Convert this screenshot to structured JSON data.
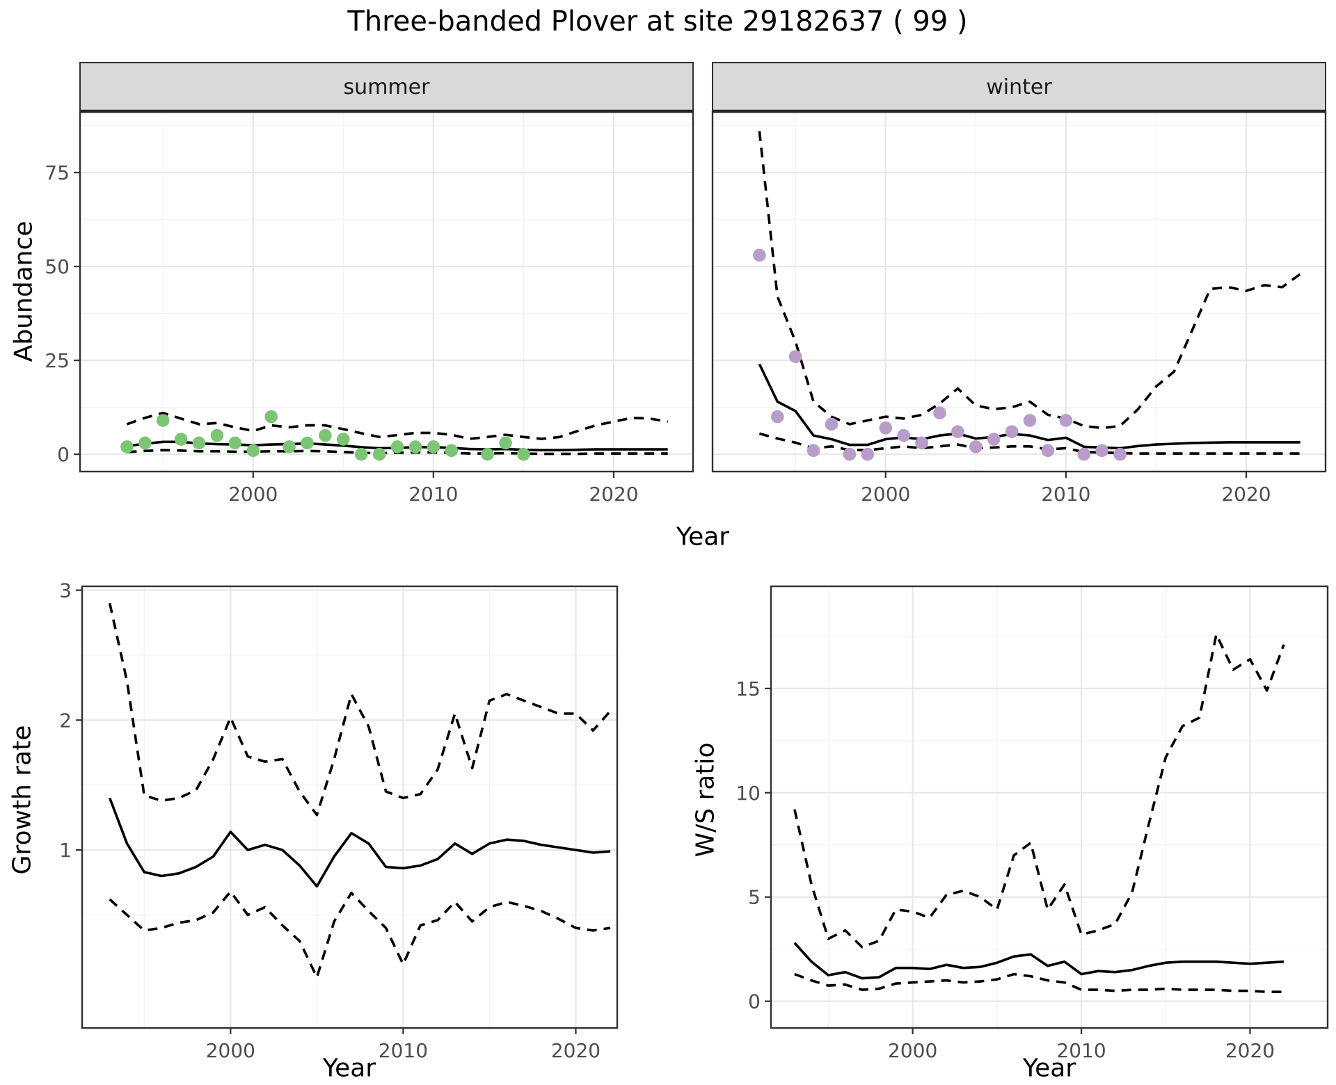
{
  "title": "Three-banded Plover at site 29182637 ( 99 )",
  "axis_labels": {
    "abundance": "Abundance",
    "year_top": "Year",
    "growth_rate": "Growth rate",
    "year_growth": "Year",
    "ws_ratio": "W/S ratio",
    "year_ws": "Year"
  },
  "facet_labels": [
    "summer",
    "winter"
  ],
  "colors": {
    "summer_point": "#7CC575",
    "winter_point": "#B99CC9",
    "fit_line": "#000000",
    "ci_line": "#000000",
    "grid_major": "#E7E7E7",
    "grid_minor": "#F3F3F3",
    "panel_border": "#303030",
    "strip_bg": "#D9D9D9",
    "strip_border": "#262626",
    "axis_text": "#4D4D4D",
    "title_text": "#000000"
  },
  "chart_data": [
    {
      "id": "abundance-summer",
      "type": "scatter",
      "facet_label": "summer",
      "xlabel": "Year",
      "ylabel": "Abundance",
      "xlim": [
        1990.4,
        2024.4
      ],
      "ylim": [
        -4.6,
        91.3
      ],
      "xticks": [
        2000,
        2010,
        2020
      ],
      "xticks_minor": [
        1995,
        2005,
        2015
      ],
      "yticks": [
        0,
        25,
        50,
        75
      ],
      "yticks_minor": [
        12.5,
        37.5,
        62.5,
        87.5
      ],
      "point_color": "#7CC575",
      "points": {
        "x": [
          1993,
          1994,
          1995,
          1996,
          1997,
          1998,
          1999,
          2000,
          2001,
          2002,
          2003,
          2004,
          2005,
          2006,
          2007,
          2008,
          2009,
          2010,
          2011,
          2013,
          2014,
          2015
        ],
        "y": [
          2,
          3,
          9,
          4,
          3,
          5,
          3,
          1,
          10,
          2,
          3,
          5,
          4,
          0,
          0,
          2,
          2,
          2,
          1,
          0,
          3,
          0
        ]
      },
      "series": [
        {
          "name": "model fit",
          "style": "solid",
          "x": [
            1993,
            1994,
            1995,
            1996,
            1997,
            1998,
            1999,
            2000,
            2001,
            2002,
            2003,
            2004,
            2005,
            2006,
            2007,
            2008,
            2009,
            2010,
            2011,
            2012,
            2013,
            2014,
            2015,
            2016,
            2017,
            2018,
            2019,
            2020,
            2021,
            2022,
            2023
          ],
          "y": [
            2.2,
            2.8,
            3.3,
            3.3,
            2.9,
            2.7,
            2.6,
            2.4,
            2.6,
            2.7,
            2.9,
            2.6,
            2.3,
            1.9,
            1.6,
            1.7,
            1.9,
            1.9,
            1.7,
            1.4,
            1.3,
            1.4,
            1.2,
            1.1,
            1.1,
            1.2,
            1.3,
            1.3,
            1.3,
            1.3,
            1.3
          ]
        },
        {
          "name": "CI upper",
          "style": "dashed",
          "x": [
            1993,
            1994,
            1995,
            1996,
            1997,
            1998,
            1999,
            2000,
            2001,
            2002,
            2003,
            2004,
            2005,
            2006,
            2007,
            2008,
            2009,
            2010,
            2011,
            2012,
            2013,
            2014,
            2015,
            2016,
            2017,
            2018,
            2019,
            2020,
            2021,
            2022,
            2023
          ],
          "y": [
            8.0,
            9.7,
            11.0,
            9.5,
            8.0,
            8.3,
            7.2,
            6.2,
            7.7,
            7.2,
            7.7,
            7.7,
            6.7,
            5.6,
            4.6,
            5.1,
            5.7,
            5.7,
            5.2,
            4.1,
            4.6,
            5.2,
            4.6,
            4.1,
            4.6,
            6.2,
            7.7,
            8.7,
            9.7,
            9.5,
            8.7
          ]
        },
        {
          "name": "CI lower",
          "style": "dashed",
          "x": [
            1993,
            1994,
            1995,
            1996,
            1997,
            1998,
            1999,
            2000,
            2001,
            2002,
            2003,
            2004,
            2005,
            2006,
            2007,
            2008,
            2009,
            2010,
            2011,
            2012,
            2013,
            2014,
            2015,
            2016,
            2017,
            2018,
            2019,
            2020,
            2021,
            2022,
            2023
          ],
          "y": [
            0.6,
            0.9,
            1.1,
            1.0,
            0.8,
            0.8,
            0.7,
            0.7,
            0.8,
            0.8,
            0.9,
            0.8,
            0.6,
            0.4,
            0.3,
            0.4,
            0.5,
            0.5,
            0.4,
            0.2,
            0.2,
            0.3,
            0.2,
            0.1,
            0.1,
            0.1,
            0.2,
            0.2,
            0.2,
            0.2,
            0.2
          ]
        }
      ]
    },
    {
      "id": "abundance-winter",
      "type": "scatter",
      "facet_label": "winter",
      "xlabel": "Year",
      "ylabel": "Abundance",
      "xlim": [
        1990.4,
        2024.4
      ],
      "ylim": [
        -4.6,
        91.3
      ],
      "xticks": [
        2000,
        2010,
        2020
      ],
      "xticks_minor": [
        1995,
        2005,
        2015
      ],
      "yticks": [
        0,
        25,
        50,
        75
      ],
      "yticks_minor": [
        12.5,
        37.5,
        62.5,
        87.5
      ],
      "point_color": "#B99CC9",
      "points": {
        "x": [
          1993,
          1994,
          1995,
          1996,
          1997,
          1998,
          1999,
          2000,
          2001,
          2002,
          2003,
          2004,
          2005,
          2006,
          2007,
          2008,
          2009,
          2010,
          2011,
          2012,
          2013
        ],
        "y": [
          53,
          10,
          26,
          1,
          8,
          0,
          0,
          7,
          5,
          3,
          11,
          6,
          2,
          4,
          6,
          9,
          1,
          9,
          0,
          1,
          0
        ]
      },
      "series": [
        {
          "name": "model fit",
          "style": "solid",
          "x": [
            1993,
            1994,
            1995,
            1996,
            1997,
            1998,
            1999,
            2000,
            2001,
            2002,
            2003,
            2004,
            2005,
            2006,
            2007,
            2008,
            2009,
            2010,
            2011,
            2012,
            2013,
            2014,
            2015,
            2016,
            2017,
            2018,
            2019,
            2020,
            2021,
            2022,
            2023
          ],
          "y": [
            24,
            14,
            11.5,
            5,
            4,
            2.5,
            2.5,
            4,
            4.5,
            4,
            5,
            5.5,
            4.2,
            4.6,
            5.4,
            5.0,
            3.8,
            4.4,
            2.0,
            1.8,
            1.6,
            2.2,
            2.6,
            2.8,
            3.0,
            3.1,
            3.2,
            3.2,
            3.2,
            3.2,
            3.2
          ]
        },
        {
          "name": "CI upper",
          "style": "dashed",
          "x": [
            1993,
            1994,
            1995,
            1996,
            1997,
            1998,
            1999,
            2000,
            2001,
            2002,
            2003,
            2004,
            2005,
            2006,
            2007,
            2008,
            2009,
            2010,
            2011,
            2012,
            2013,
            2014,
            2015,
            2016,
            2017,
            2018,
            2019,
            2020,
            2021,
            2022,
            2023
          ],
          "y": [
            86,
            42,
            30,
            14,
            10,
            8,
            9,
            10,
            9.5,
            10.5,
            13.5,
            17.5,
            13,
            12,
            12.5,
            14,
            10.5,
            9.5,
            7.5,
            7,
            7.5,
            12,
            18,
            22,
            33,
            44,
            44.5,
            43.5,
            45,
            44.5,
            48
          ]
        },
        {
          "name": "CI lower",
          "style": "dashed",
          "x": [
            1993,
            1994,
            1995,
            1996,
            1997,
            1998,
            1999,
            2000,
            2001,
            2002,
            2003,
            2004,
            2005,
            2006,
            2007,
            2008,
            2009,
            2010,
            2011,
            2012,
            2013,
            2014,
            2015,
            2016,
            2017,
            2018,
            2019,
            2020,
            2021,
            2022,
            2023
          ],
          "y": [
            5.5,
            4.2,
            3.1,
            1.6,
            2.1,
            1.1,
            1.1,
            1.6,
            2.1,
            1.6,
            2.1,
            2.6,
            1.6,
            1.8,
            2.1,
            2.1,
            1.3,
            1.6,
            0.6,
            0.5,
            0.3,
            0.2,
            0.2,
            0.2,
            0.2,
            0.2,
            0.2,
            0.2,
            0.2,
            0.2,
            0.2
          ]
        }
      ]
    },
    {
      "id": "growth-rate",
      "type": "line",
      "facet_label": null,
      "xlabel": "Year",
      "ylabel": "Growth rate",
      "xlim": [
        1991.4,
        2022.4
      ],
      "ylim": [
        -0.37,
        3.03
      ],
      "xticks": [
        2000,
        2010,
        2020
      ],
      "xticks_minor": [
        1995,
        2005,
        2015
      ],
      "yticks": [
        1,
        2,
        3
      ],
      "yticks_minor": [
        0.5,
        1.5,
        2.5
      ],
      "series": [
        {
          "name": "growth rate",
          "style": "solid",
          "x": [
            1993,
            1994,
            1995,
            1996,
            1997,
            1998,
            1999,
            2000,
            2001,
            2002,
            2003,
            2004,
            2005,
            2006,
            2007,
            2008,
            2009,
            2010,
            2011,
            2012,
            2013,
            2014,
            2015,
            2016,
            2017,
            2018,
            2019,
            2020,
            2021,
            2022
          ],
          "y": [
            1.4,
            1.05,
            0.83,
            0.8,
            0.82,
            0.87,
            0.95,
            1.14,
            1.0,
            1.04,
            1.0,
            0.88,
            0.72,
            0.95,
            1.13,
            1.05,
            0.87,
            0.86,
            0.88,
            0.93,
            1.05,
            0.97,
            1.05,
            1.08,
            1.07,
            1.04,
            1.02,
            1.0,
            0.98,
            0.99
          ]
        },
        {
          "name": "CI upper",
          "style": "dashed",
          "x": [
            1993,
            1994,
            1995,
            1996,
            1997,
            1998,
            1999,
            2000,
            2001,
            2002,
            2003,
            2004,
            2005,
            2006,
            2007,
            2008,
            2009,
            2010,
            2011,
            2012,
            2013,
            2014,
            2015,
            2016,
            2017,
            2018,
            2019,
            2020,
            2021,
            2022
          ],
          "y": [
            2.9,
            2.3,
            1.42,
            1.38,
            1.4,
            1.46,
            1.7,
            2.02,
            1.72,
            1.68,
            1.7,
            1.45,
            1.27,
            1.7,
            2.2,
            1.95,
            1.45,
            1.4,
            1.43,
            1.62,
            2.05,
            1.63,
            2.15,
            2.2,
            2.15,
            2.1,
            2.05,
            2.05,
            1.92,
            2.07
          ]
        },
        {
          "name": "CI lower",
          "style": "dashed",
          "x": [
            1993,
            1994,
            1995,
            1996,
            1997,
            1998,
            1999,
            2000,
            2001,
            2002,
            2003,
            2004,
            2005,
            2006,
            2007,
            2008,
            2009,
            2010,
            2011,
            2012,
            2013,
            2014,
            2015,
            2016,
            2017,
            2018,
            2019,
            2020,
            2021,
            2022
          ],
          "y": [
            0.62,
            0.5,
            0.38,
            0.4,
            0.44,
            0.46,
            0.52,
            0.68,
            0.5,
            0.56,
            0.42,
            0.3,
            0.02,
            0.45,
            0.67,
            0.53,
            0.4,
            0.12,
            0.42,
            0.46,
            0.6,
            0.45,
            0.56,
            0.6,
            0.57,
            0.53,
            0.47,
            0.4,
            0.38,
            0.4
          ]
        }
      ]
    },
    {
      "id": "ws-ratio",
      "type": "line",
      "facet_label": null,
      "xlabel": "Year",
      "ylabel": "W/S ratio",
      "xlim": [
        1991.6,
        2024.6
      ],
      "ylim": [
        -1.28,
        19.9
      ],
      "xticks": [
        2000,
        2010,
        2020
      ],
      "xticks_minor": [
        1995,
        2005,
        2015
      ],
      "yticks": [
        0,
        5,
        10,
        15
      ],
      "yticks_minor": [
        2.5,
        7.5,
        12.5,
        17.5
      ],
      "series": [
        {
          "name": "W/S ratio",
          "style": "solid",
          "x": [
            1993,
            1994,
            1995,
            1996,
            1997,
            1998,
            1999,
            2000,
            2001,
            2002,
            2003,
            2004,
            2005,
            2006,
            2007,
            2008,
            2009,
            2010,
            2011,
            2012,
            2013,
            2014,
            2015,
            2016,
            2017,
            2018,
            2019,
            2020,
            2021,
            2022
          ],
          "y": [
            2.8,
            1.9,
            1.25,
            1.4,
            1.1,
            1.15,
            1.6,
            1.6,
            1.55,
            1.75,
            1.6,
            1.65,
            1.85,
            2.15,
            2.25,
            1.7,
            1.9,
            1.3,
            1.45,
            1.4,
            1.5,
            1.7,
            1.85,
            1.9,
            1.9,
            1.9,
            1.85,
            1.8,
            1.85,
            1.9
          ]
        },
        {
          "name": "CI upper",
          "style": "dashed",
          "x": [
            1993,
            1994,
            1995,
            1996,
            1997,
            1998,
            1999,
            2000,
            2001,
            2002,
            2003,
            2004,
            2005,
            2006,
            2007,
            2008,
            2009,
            2010,
            2011,
            2012,
            2013,
            2014,
            2015,
            2016,
            2017,
            2018,
            2019,
            2020,
            2021,
            2022
          ],
          "y": [
            9.2,
            5.6,
            3.0,
            3.4,
            2.6,
            2.9,
            4.4,
            4.3,
            4.0,
            5.1,
            5.3,
            5.0,
            4.4,
            7.0,
            7.6,
            4.4,
            5.6,
            3.2,
            3.4,
            3.7,
            5.2,
            8.5,
            11.7,
            13.2,
            13.6,
            17.6,
            15.9,
            16.4,
            14.9,
            17.1
          ]
        },
        {
          "name": "CI lower",
          "style": "dashed",
          "x": [
            1993,
            1994,
            1995,
            1996,
            1997,
            1998,
            1999,
            2000,
            2001,
            2002,
            2003,
            2004,
            2005,
            2006,
            2007,
            2008,
            2009,
            2010,
            2011,
            2012,
            2013,
            2014,
            2015,
            2016,
            2017,
            2018,
            2019,
            2020,
            2021,
            2022
          ],
          "y": [
            1.3,
            1.0,
            0.75,
            0.8,
            0.55,
            0.6,
            0.85,
            0.9,
            0.95,
            1.0,
            0.9,
            0.95,
            1.05,
            1.3,
            1.2,
            1.0,
            0.9,
            0.55,
            0.55,
            0.5,
            0.55,
            0.55,
            0.6,
            0.55,
            0.55,
            0.55,
            0.5,
            0.5,
            0.45,
            0.45
          ]
        }
      ]
    }
  ]
}
